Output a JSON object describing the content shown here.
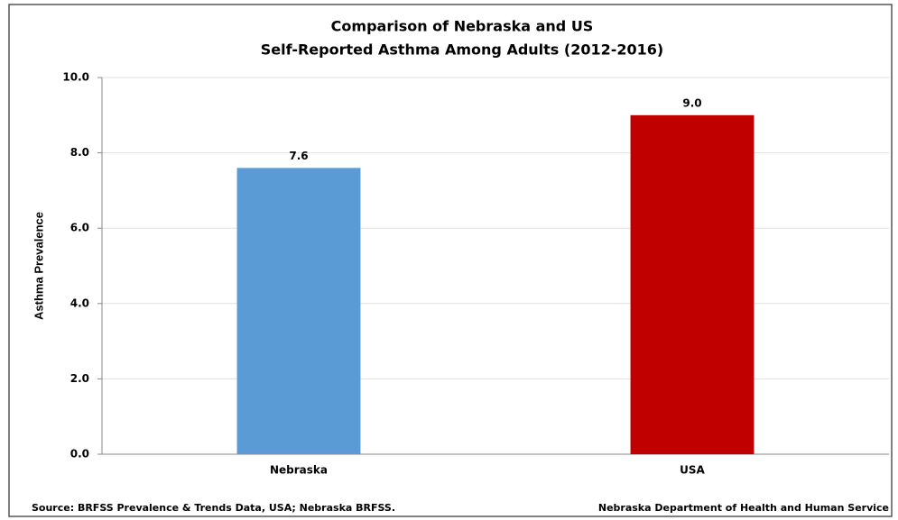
{
  "chart_data": {
    "type": "bar",
    "title": [
      "Comparison of Nebraska and US",
      "Self-Reported Asthma Among Adults (2012-2016)"
    ],
    "y_label": "Asthma Prevalence",
    "categories": [
      "Nebraska",
      "USA"
    ],
    "values": [
      7.6,
      9.0
    ],
    "value_labels": [
      "7.6",
      "9.0"
    ],
    "colors": [
      "#5b9bd5",
      "#c00000"
    ],
    "ylim": [
      0,
      10
    ],
    "yticks": [
      {
        "value": 0,
        "label": "0.0"
      },
      {
        "value": 2,
        "label": "2.0"
      },
      {
        "value": 4,
        "label": "4.0"
      },
      {
        "value": 6,
        "label": "6.0"
      },
      {
        "value": 8,
        "label": "8.0"
      },
      {
        "value": 10,
        "label": "10.0"
      }
    ],
    "grid": true,
    "source": "Source: BRFSS Prevalence & Trends Data, USA; Nebraska BRFSS.",
    "credit": "Nebraska Department of Health and Human Service"
  }
}
